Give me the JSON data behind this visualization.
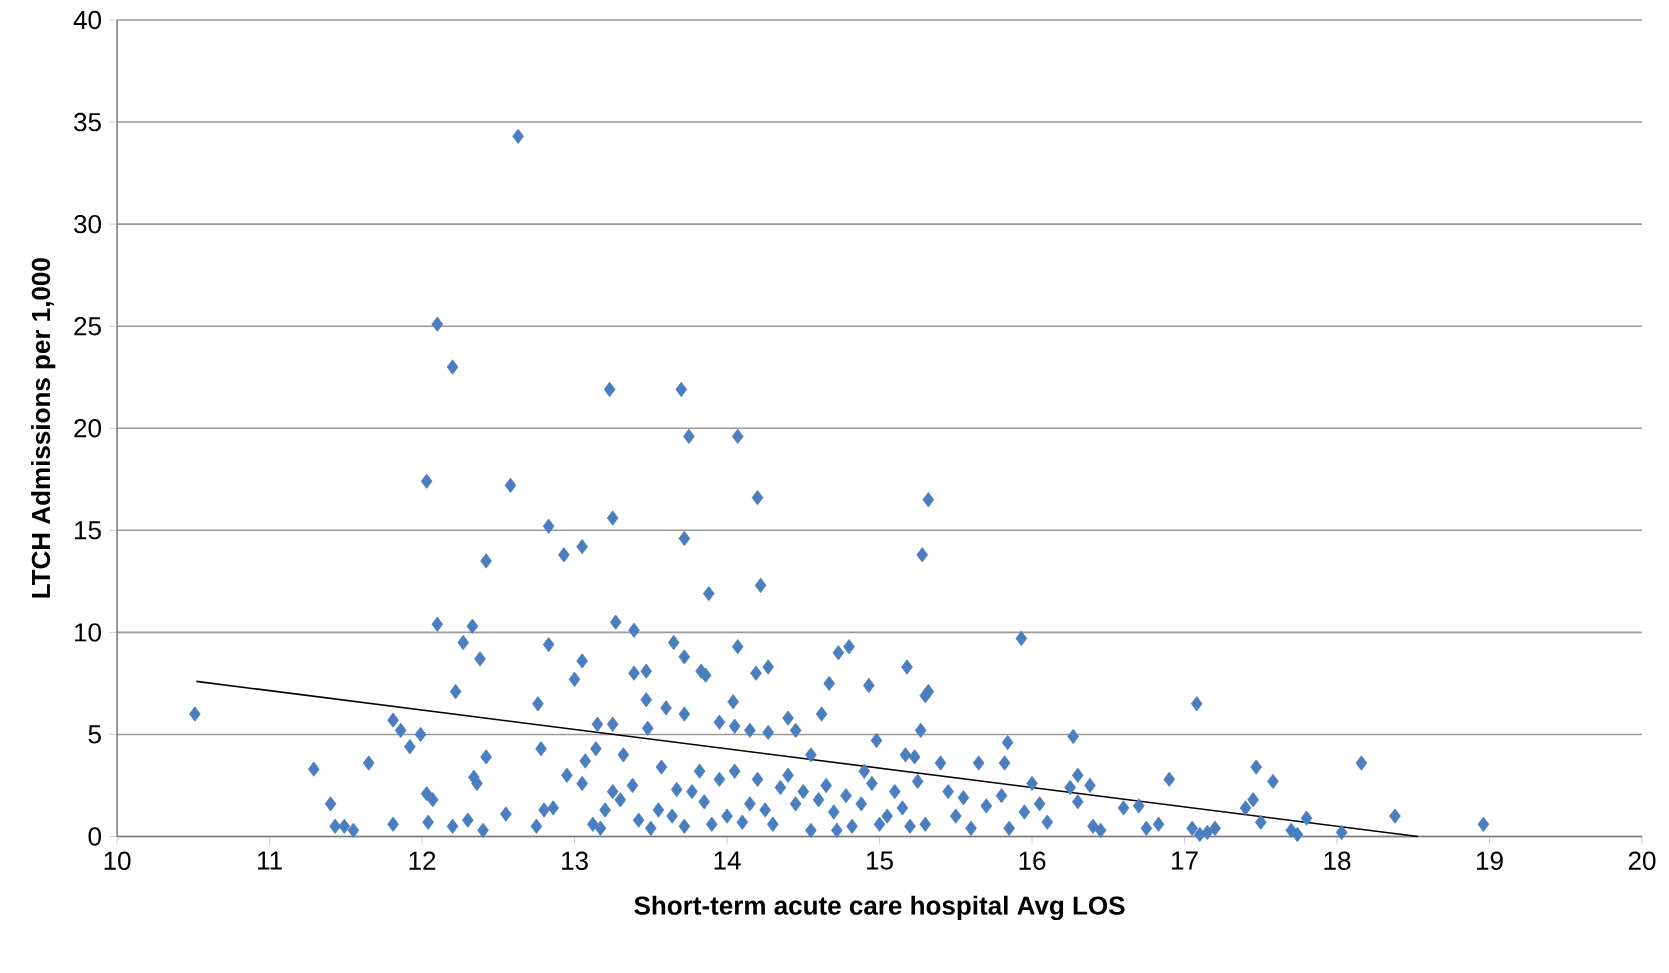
{
  "chart_data": {
    "type": "scatter",
    "xlabel": "Short-term acute care hospital Avg LOS",
    "ylabel": "LTCH Admissions per 1,000",
    "xlim": [
      10,
      20
    ],
    "xticks": [
      10,
      11,
      12,
      13,
      14,
      15,
      16,
      17,
      18,
      19,
      20
    ],
    "ylim": [
      0,
      40
    ],
    "yticks": [
      0,
      5,
      10,
      15,
      20,
      25,
      30,
      35,
      40
    ],
    "grid": "y",
    "marker": "diamond",
    "series": [
      {
        "color": "#4a7ebf",
        "x": [
          12.63,
          12.1,
          12.2,
          13.23,
          13.7,
          13.75,
          14.07,
          12.03,
          12.58,
          14.2,
          15.32,
          13.25,
          12.83,
          13.72,
          13.05,
          12.93,
          15.28,
          12.42,
          13.88,
          14.22,
          12.1,
          12.33,
          13.27,
          13.39,
          15.93,
          12.27,
          12.83,
          13.65,
          14.07,
          14.73,
          14.8,
          12.38,
          13.72,
          13.05,
          13.39,
          13.47,
          13.83,
          13.86,
          14.19,
          14.27,
          15.18,
          13.0,
          14.67,
          14.93,
          15.3,
          15.32,
          12.22,
          13.47,
          14.04,
          14.62,
          17.08,
          10.51,
          12.76,
          13.6,
          13.72,
          11.81,
          11.86,
          11.99,
          11.92,
          12.42,
          12.34,
          12.36,
          12.78,
          13.15,
          13.25,
          13.14,
          13.07,
          13.32,
          13.48,
          13.95,
          14.05,
          14.15,
          14.27,
          14.4,
          14.45,
          14.55,
          14.9,
          14.98,
          15.17,
          15.27,
          15.84,
          16.27,
          15.23,
          15.4,
          15.65,
          15.82,
          16.3,
          16.38,
          16.9,
          17.47,
          17.58,
          18.16,
          11.29,
          11.65,
          11.4,
          11.43,
          11.49,
          11.55,
          11.81,
          12.04,
          12.03,
          12.07,
          12.2,
          12.3,
          12.4,
          12.55,
          12.75,
          12.8,
          12.86,
          12.95,
          13.05,
          13.12,
          13.17,
          13.2,
          13.25,
          13.3,
          13.38,
          13.42,
          13.5,
          13.55,
          13.57,
          13.64,
          13.67,
          13.72,
          13.77,
          13.82,
          13.85,
          13.9,
          13.95,
          14.0,
          14.05,
          14.1,
          14.15,
          14.2,
          14.25,
          14.3,
          14.35,
          14.4,
          14.45,
          14.5,
          14.55,
          14.6,
          14.65,
          14.7,
          14.72,
          14.78,
          14.82,
          14.88,
          14.95,
          15.0,
          15.05,
          15.1,
          15.15,
          15.2,
          15.25,
          15.3,
          15.45,
          15.5,
          15.55,
          15.6,
          15.7,
          15.8,
          15.85,
          15.95,
          16.0,
          16.05,
          16.1,
          16.25,
          16.3,
          16.4,
          16.45,
          16.6,
          16.7,
          16.75,
          16.83,
          17.05,
          17.1,
          17.15,
          17.2,
          17.4,
          17.45,
          17.5,
          17.7,
          17.74,
          17.8,
          18.03,
          18.38,
          18.96
        ],
        "values": [
          34.3,
          25.1,
          23.0,
          21.9,
          21.9,
          19.6,
          19.6,
          17.4,
          17.2,
          16.6,
          16.5,
          15.6,
          15.2,
          14.6,
          14.2,
          13.8,
          13.8,
          13.5,
          11.9,
          12.3,
          10.4,
          10.3,
          10.5,
          10.1,
          9.7,
          9.5,
          9.4,
          9.5,
          9.3,
          9.0,
          9.3,
          8.7,
          8.8,
          8.6,
          8.0,
          8.1,
          8.1,
          7.9,
          8.0,
          8.3,
          8.3,
          7.7,
          7.5,
          7.4,
          6.9,
          7.1,
          7.1,
          6.7,
          6.6,
          6.0,
          6.5,
          6.0,
          6.5,
          6.3,
          6.0,
          5.7,
          5.2,
          5.0,
          4.4,
          3.9,
          2.9,
          2.6,
          4.3,
          5.5,
          5.5,
          4.3,
          3.7,
          4.0,
          5.3,
          5.6,
          5.4,
          5.2,
          5.1,
          5.8,
          5.2,
          4.0,
          3.2,
          4.7,
          4.0,
          5.2,
          4.6,
          4.9,
          3.9,
          3.6,
          3.6,
          3.6,
          3.0,
          2.5,
          2.8,
          3.4,
          2.7,
          3.6,
          3.3,
          3.6,
          1.6,
          0.5,
          0.5,
          0.3,
          0.6,
          0.7,
          2.1,
          1.8,
          0.5,
          0.8,
          0.3,
          1.1,
          0.5,
          1.3,
          1.4,
          3.0,
          2.6,
          0.6,
          0.4,
          1.3,
          2.2,
          1.8,
          2.5,
          0.8,
          0.4,
          1.3,
          3.4,
          1.0,
          2.3,
          0.5,
          2.2,
          3.2,
          1.7,
          0.6,
          2.8,
          1.0,
          3.2,
          0.7,
          1.6,
          2.8,
          1.3,
          0.6,
          2.4,
          3.0,
          1.6,
          2.2,
          0.3,
          1.8,
          2.5,
          1.2,
          0.3,
          2.0,
          0.5,
          1.6,
          2.6,
          0.6,
          1.0,
          2.2,
          1.4,
          0.5,
          2.7,
          0.6,
          2.2,
          1.0,
          1.9,
          0.4,
          1.5,
          2.0,
          0.4,
          1.2,
          2.6,
          1.6,
          0.7,
          2.4,
          1.7,
          0.5,
          0.3,
          1.4,
          1.5,
          0.4,
          0.6,
          0.4,
          0.1,
          0.2,
          0.4,
          1.4,
          1.8,
          0.7,
          0.3,
          0.1,
          0.9,
          0.2,
          1.0,
          0.6
        ]
      },
      {
        "type": "line",
        "color": "#000000",
        "marker": "none",
        "x": [
          10.52,
          18.53
        ],
        "values": [
          7.6,
          0
        ]
      }
    ]
  }
}
